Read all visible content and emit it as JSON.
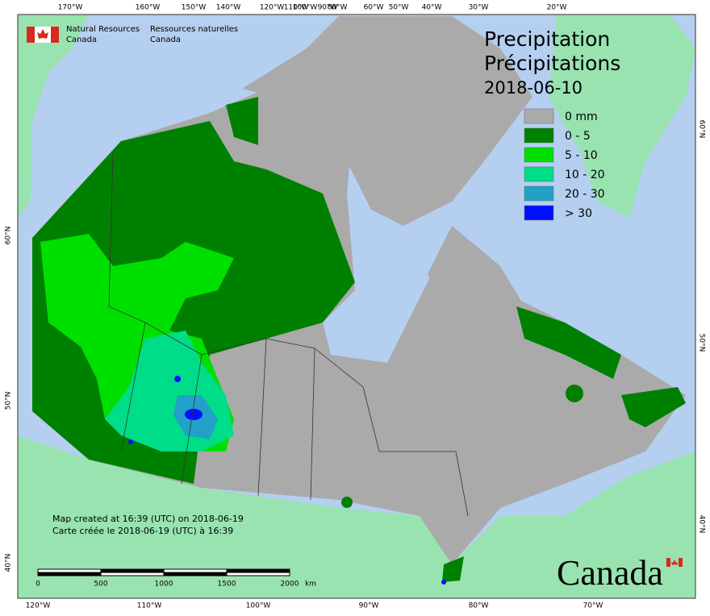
{
  "header": {
    "agency_en": [
      "Natural Resources",
      "Canada"
    ],
    "agency_fr": [
      "Ressources naturelles",
      "Canada"
    ]
  },
  "title": {
    "en": "Precipitation",
    "fr": "Précipitations",
    "date": "2018-06-10"
  },
  "legend": [
    {
      "label": "0 mm",
      "color": "#aaaaaa"
    },
    {
      "label": "0 - 5",
      "color": "#008000"
    },
    {
      "label": "5 - 10",
      "color": "#00e000"
    },
    {
      "label": "10 - 20",
      "color": "#00dd88"
    },
    {
      "label": "20 - 30",
      "color": "#22a0c8"
    },
    {
      "label": "> 30",
      "color": "#0010ff"
    }
  ],
  "graticule": {
    "top": [
      "170°W",
      "160°W",
      "150°W",
      "140°W",
      "120°W",
      "110°W",
      "100°W",
      "90°W",
      "80°W",
      "60°W",
      "50°W",
      "40°W",
      "30°W",
      "20°W"
    ],
    "bottom": [
      "120°W",
      "110°W",
      "100°W",
      "90°W",
      "80°W",
      "70°W"
    ],
    "left": [
      "60°N",
      "50°N",
      "40°N"
    ],
    "right": [
      "60°N",
      "50°N",
      "40°N"
    ]
  },
  "notes": [
    "Map created at 16:39 (UTC) on 2018-06-19",
    "Carte créée le 2018-06-19 (UTC) à 16:39"
  ],
  "scale": {
    "labels": [
      "0",
      "500",
      "1000",
      "1500",
      "2000"
    ],
    "unit": "km"
  },
  "wordmark": "Canada"
}
